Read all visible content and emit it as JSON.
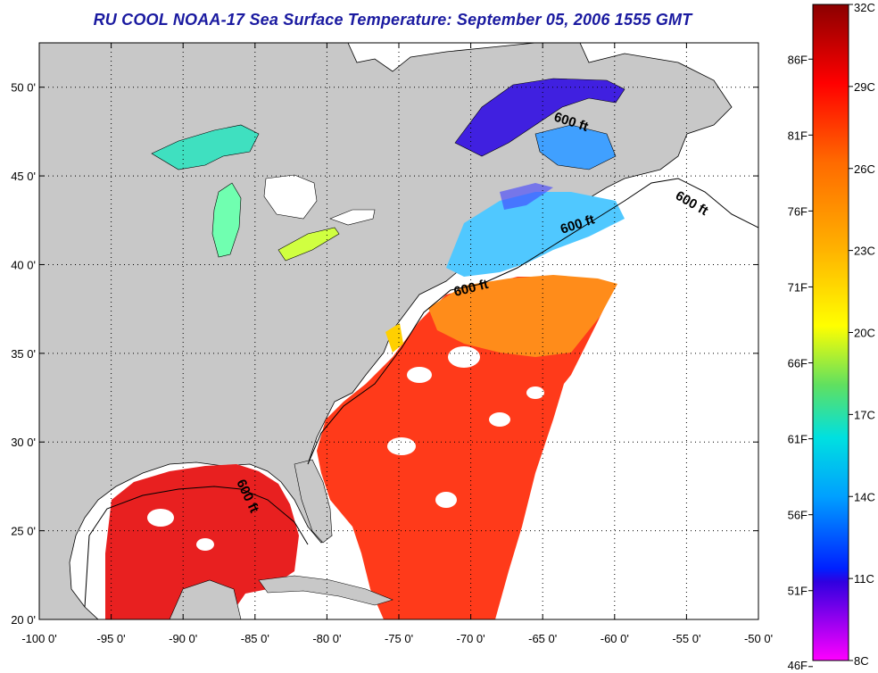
{
  "title": "RU COOL  NOAA-17  Sea Surface Temperature:  September 05, 2006 1555 GMT",
  "map": {
    "lon_labels": [
      "-100 0'",
      "-95 0'",
      "-90 0'",
      "-85 0'",
      "-80 0'",
      "-75 0'",
      "-70 0'",
      "-65 0'",
      "-60 0'",
      "-55 0'",
      "-50 0'"
    ],
    "lat_labels": [
      "50 0'",
      "45 0'",
      "40 0'",
      "35 0'",
      "30 0'",
      "25 0'",
      "20 0'"
    ],
    "lon_range": [
      -100,
      -50
    ],
    "lat_range": [
      20,
      52.5
    ],
    "contour_label": "600 ft",
    "land_color": "#c8c8c8",
    "ocean_color": "#ffffff",
    "grid": "dotted"
  },
  "colorbar": {
    "celsius_labels": [
      "32C",
      "29C",
      "26C",
      "23C",
      "20C",
      "17C",
      "14C",
      "11C",
      "8C"
    ],
    "fahrenheit_labels": [
      "86F",
      "81F",
      "76F",
      "71F",
      "66F",
      "61F",
      "56F",
      "51F",
      "46F"
    ],
    "range_c": [
      8,
      32
    ],
    "colors": [
      "#8b0000",
      "#ff0000",
      "#ff8c00",
      "#ffff00",
      "#40e080",
      "#00ffff",
      "#0080ff",
      "#0000ff",
      "#8000ff",
      "#ff00ff"
    ]
  }
}
